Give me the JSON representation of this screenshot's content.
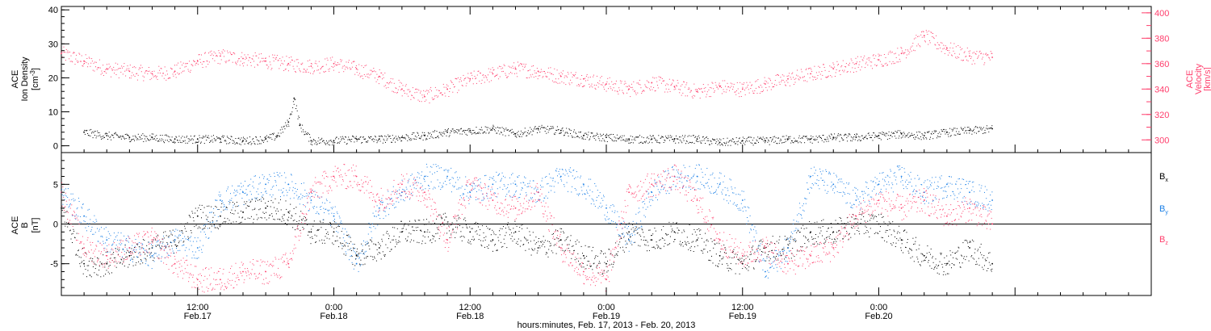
{
  "chart_data": [
    {
      "type": "scatter",
      "panel": "top",
      "ylabel": "ACE\nIon Density\n[cm^-3]",
      "ylabel_lines": [
        "ACE",
        "Ion Density",
        "[cm",
        "-3",
        "]"
      ],
      "ylim": [
        -2,
        41
      ],
      "yticks": [
        0,
        10,
        20,
        30,
        40
      ],
      "y2label_lines": [
        "ACE",
        "Velocity",
        "[km/s]"
      ],
      "y2lim": [
        290,
        405
      ],
      "y2ticks": [
        300,
        320,
        340,
        360,
        380,
        400
      ],
      "series": [
        {
          "color": "#000000",
          "axis": "left",
          "x": [
            2,
            4,
            6,
            8,
            10,
            12,
            14,
            16,
            18,
            19,
            20,
            20.5,
            21,
            22,
            24,
            26,
            28,
            30,
            32,
            34,
            36,
            38,
            40,
            42,
            44,
            46,
            48,
            50,
            52,
            54,
            56,
            58,
            60,
            62,
            64,
            66,
            68,
            70,
            72,
            74,
            76,
            78,
            80,
            82
          ],
          "values": [
            4,
            3,
            2.5,
            2.5,
            2,
            2,
            2,
            1.5,
            2,
            3,
            7,
            14,
            6,
            1.5,
            1.5,
            2,
            2,
            2.5,
            3,
            4,
            4.5,
            5,
            3.5,
            5,
            4.5,
            3,
            2.5,
            2,
            2,
            2,
            2,
            1,
            1.5,
            1.5,
            2,
            2,
            2.5,
            2.5,
            3,
            3.5,
            3,
            4,
            4.5,
            5
          ]
        },
        {
          "color": "#ff3e6c",
          "axis": "right",
          "x": [
            0,
            2,
            4,
            6,
            8,
            10,
            12,
            14,
            16,
            18,
            20,
            22,
            24,
            26,
            28,
            30,
            32,
            34,
            36,
            38,
            40,
            42,
            44,
            46,
            48,
            50,
            52,
            54,
            56,
            58,
            60,
            62,
            64,
            66,
            68,
            70,
            72,
            74,
            76,
            78,
            80,
            82
          ],
          "values": [
            368,
            362,
            356,
            354,
            352,
            354,
            362,
            366,
            364,
            362,
            360,
            358,
            360,
            356,
            350,
            340,
            334,
            340,
            348,
            352,
            356,
            354,
            350,
            348,
            344,
            340,
            345,
            342,
            338,
            342,
            340,
            344,
            348,
            352,
            356,
            360,
            363,
            368,
            382,
            372,
            366,
            365
          ]
        }
      ]
    },
    {
      "type": "scatter",
      "panel": "bottom",
      "ylabel_lines": [
        "ACE",
        "B",
        "[nT]"
      ],
      "ylim": [
        -9,
        9
      ],
      "yticks": [
        -5,
        0,
        5
      ],
      "xlabel": "hours:minutes, Feb. 17, 2013 - Feb. 20, 2013",
      "x_range_hours": [
        0,
        96
      ],
      "x_tick_labels": [
        {
          "time": "12:00",
          "date": "Feb.17"
        },
        {
          "time": "0:00",
          "date": "Feb.18"
        },
        {
          "time": "12:00",
          "date": "Feb.18"
        },
        {
          "time": "0:00",
          "date": "Feb.19"
        },
        {
          "time": "12:00",
          "date": "Feb.19"
        },
        {
          "time": "0:00",
          "date": "Feb.20"
        }
      ],
      "series": [
        {
          "name": "B_x",
          "color": "#000000",
          "x": [
            0,
            2,
            4,
            6,
            8,
            10,
            12,
            14,
            16,
            18,
            20,
            22,
            24,
            26,
            28,
            30,
            32,
            34,
            36,
            38,
            40,
            42,
            44,
            46,
            48,
            50,
            52,
            54,
            56,
            58,
            60,
            62,
            64,
            66,
            68,
            70,
            72,
            74,
            76,
            78,
            80,
            82
          ],
          "values": [
            2,
            -5,
            -5,
            -4,
            -3,
            -2,
            1,
            1,
            1.5,
            2,
            1.5,
            -1,
            -1,
            -4,
            -3,
            -1,
            -1,
            0,
            -1,
            -2,
            -1,
            -3,
            -2,
            -4,
            -5,
            -1,
            -2,
            -1,
            -2,
            -4,
            -5,
            -3,
            -3,
            -1,
            -1,
            0,
            0,
            -2,
            -4,
            -5,
            -3,
            -5
          ]
        },
        {
          "name": "B_y",
          "color": "#1a7fe6",
          "x": [
            0,
            2,
            4,
            6,
            8,
            10,
            12,
            14,
            16,
            18,
            20,
            22,
            24,
            26,
            28,
            30,
            32,
            34,
            36,
            38,
            40,
            42,
            44,
            46,
            48,
            50,
            52,
            54,
            56,
            58,
            60,
            62,
            64,
            66,
            68,
            70,
            72,
            74,
            76,
            78,
            80,
            82
          ],
          "values": [
            4,
            1,
            -2,
            -3,
            -4,
            -2,
            -3,
            3,
            4,
            5,
            5,
            3,
            1,
            -5,
            2,
            4,
            6,
            6,
            4,
            5,
            5,
            4,
            6,
            5,
            2,
            -2,
            4,
            6,
            6,
            5,
            3,
            -6,
            -3,
            6,
            5,
            3,
            5,
            6,
            4,
            5,
            4,
            3
          ]
        },
        {
          "name": "B_z",
          "color": "#ff3e6c",
          "x": [
            0,
            2,
            4,
            6,
            8,
            10,
            12,
            14,
            16,
            18,
            20,
            22,
            24,
            26,
            28,
            30,
            32,
            34,
            36,
            38,
            40,
            42,
            44,
            46,
            48,
            50,
            52,
            54,
            56,
            58,
            60,
            62,
            64,
            66,
            68,
            70,
            72,
            74,
            76,
            78,
            80,
            82
          ],
          "values": [
            4,
            -3,
            -4,
            -3,
            -2,
            -5,
            -7,
            -7,
            -6,
            -6,
            -5,
            4,
            6,
            6,
            3,
            5,
            4,
            -2,
            5,
            3,
            2,
            4,
            -3,
            -6,
            -7,
            4,
            5,
            6,
            3,
            -2,
            -4,
            -3,
            -5,
            -4,
            -3,
            1,
            3,
            2,
            3,
            1,
            2,
            0
          ]
        }
      ]
    }
  ],
  "legend": {
    "bx_main": "B",
    "bx_sub": "x",
    "by_main": "B",
    "by_sub": "y",
    "bz_main": "B",
    "bz_sub": "z"
  }
}
